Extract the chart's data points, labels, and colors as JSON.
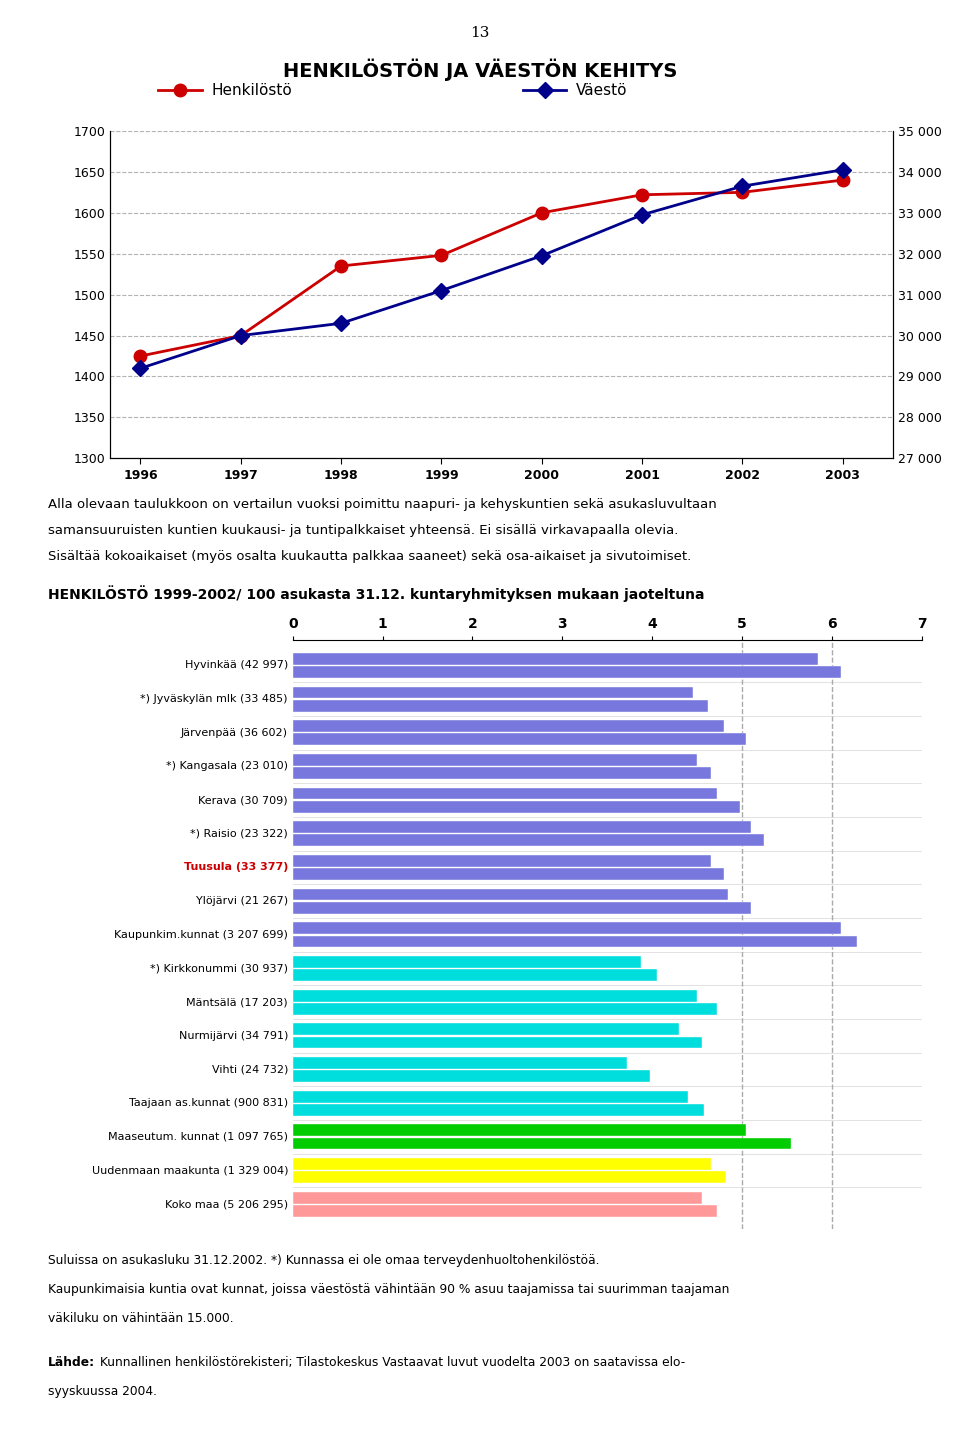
{
  "page_number": "13",
  "line_chart": {
    "title": "HENKILÖSTÖN JA VÄESTÖN KEHITYS",
    "years": [
      1996,
      1997,
      1998,
      1999,
      2000,
      2001,
      2002,
      2003
    ],
    "henkilo": [
      1425,
      1450,
      1535,
      1548,
      1600,
      1622,
      1625,
      1640
    ],
    "vaesto": [
      29200,
      30000,
      30300,
      31100,
      31950,
      32950,
      33650,
      34050
    ],
    "left_ylim": [
      1300,
      1700
    ],
    "left_yticks": [
      1300,
      1350,
      1400,
      1450,
      1500,
      1550,
      1600,
      1650,
      1700
    ],
    "right_ylim": [
      27000,
      35000
    ],
    "right_yticks": [
      27000,
      28000,
      29000,
      30000,
      31000,
      32000,
      33000,
      34000,
      35000
    ],
    "right_yticklabels": [
      "27 000",
      "28 000",
      "29 000",
      "30 000",
      "31 000",
      "32 000",
      "33 000",
      "34 000",
      "35 000"
    ],
    "henkilo_color": "#cc0000",
    "vaesto_color": "#00008b",
    "legend_henkilo": "Henkilöstö",
    "legend_vaesto": "Väestö"
  },
  "text_block1": "Alla olevaan taulukkoon on vertailun vuoksi poimittu naapuri- ja kehyskuntien sekä asukasluvultaan",
  "text_block2": "samansuuruisten kuntien kuukausi- ja tuntipalkkaiset yhteensä. Ei sisällä virkavapaalla olevia.",
  "text_block3": "Sisältää kokoaikaiset (myös osalta kuukautta palkkaa saaneet) sekä osa-aikaiset ja sivutoimiset.",
  "bar_title": "HENKILÖSTÖ 1999-2002/ 100 asukasta 31.12. kuntaryhmityksen mukaan jaoteltuna",
  "bar_chart": {
    "xlim": [
      0,
      7
    ],
    "xticks": [
      0,
      1,
      2,
      3,
      4,
      5,
      6,
      7
    ],
    "categories": [
      "Hyvinkää (42 997)",
      "*) Jyväskylän mlk (33 485)",
      "Järvenpää (36 602)",
      "*) Kangasala (23 010)",
      "Kerava (30 709)",
      "*) Raisio (23 322)",
      "Tuusula (33 377)",
      "Ylöjärvi (21 267)",
      "Kaupunkim.kunnat (3 207 699)",
      "*) Kirkkonummi (30 937)",
      "Mäntsälä (17 203)",
      "Nurmijärvi (34 791)",
      "Vihti (24 732)",
      "Taajaan as.kunnat (900 831)",
      "Maaseutum. kunnat (1 097 765)",
      "Uudenmaan maakunta (1 329 004)",
      "Koko maa (5 206 295)"
    ],
    "values_1999": [
      5.85,
      4.45,
      4.8,
      4.5,
      4.72,
      5.1,
      4.65,
      4.85,
      6.1,
      3.88,
      4.5,
      4.3,
      3.72,
      4.4,
      5.05,
      4.65,
      4.55
    ],
    "values_2002": [
      6.1,
      4.62,
      5.05,
      4.65,
      4.98,
      5.25,
      4.8,
      5.1,
      6.28,
      4.05,
      4.72,
      4.55,
      3.98,
      4.58,
      5.55,
      4.82,
      4.72
    ],
    "bar_colors": [
      "#7777dd",
      "#7777dd",
      "#7777dd",
      "#7777dd",
      "#7777dd",
      "#7777dd",
      "#7777dd",
      "#7777dd",
      "#7777dd",
      "#00dddd",
      "#00dddd",
      "#00dddd",
      "#00dddd",
      "#00dddd",
      "#00cc00",
      "#ffff00",
      "#ff9999"
    ],
    "tuusula_label_color": "#cc0000",
    "vline_positions": [
      5,
      6
    ],
    "vline_color": "#aaaaaa",
    "vline_style": "--"
  },
  "footnote1": "Suluissa on asukasluku 31.12.2002. *) Kunnassa ei ole omaa terveydenhuoltohenkilöstöä.",
  "footnote2": "Kaupunkimaisia kuntia ovat kunnat, joissa väestöstä vähintään 90 % asuu taajamissa tai suurimman taajaman",
  "footnote3": "väkiluku on vähintään 15.000.",
  "footnote4_bold": "Lähde:",
  "footnote4_rest": " Kunnallinen henkilöstörekisteri; Tilastokeskus Vastaavat luvut vuodelta 2003 on saatavissa elo-",
  "footnote5": "syyskuussa 2004."
}
